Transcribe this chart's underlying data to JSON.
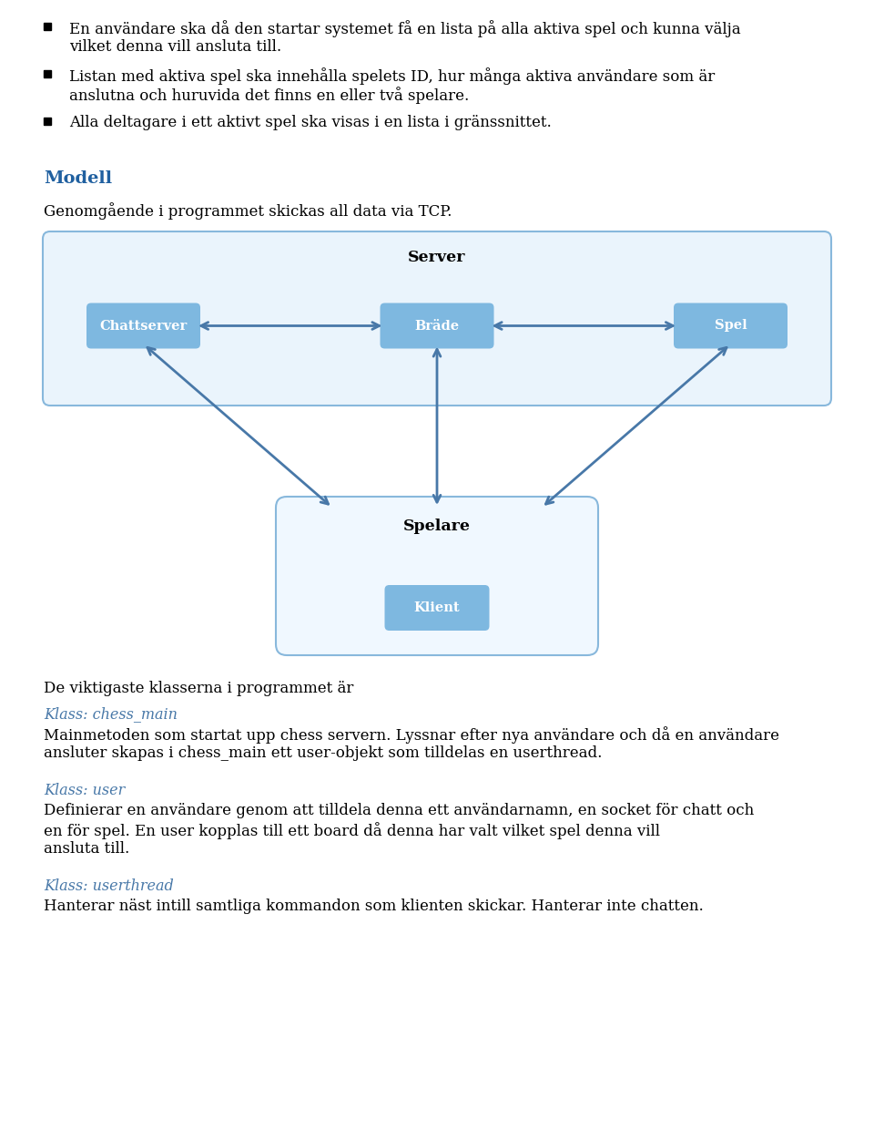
{
  "bullet_points": [
    "En användare ska då den startar systemet få en lista på alla aktiva spel och kunna välja vilket denna vill ansluta till.",
    "Listan med aktiva spel ska innehålla spelets ID, hur många aktiva användare som är anslutna och huruvida det finns en eller två spelare.",
    "Alla deltagare i ett aktivt spel ska visas i en lista i gränssnittet."
  ],
  "heading_modell": "Modell",
  "heading_modell_color": "#2060A0",
  "para_modell": "Genomgående i programmet skickas all data via TCP.",
  "server_label": "Server",
  "server_bg": "#EAF4FC",
  "server_bg_border": "#88B8DC",
  "box_color": "#7EB8E0",
  "box_border": "#5090B8",
  "spelare_label": "Spelare",
  "spelare_bg": "#F0F8FF",
  "spelare_bg_border": "#88B8DC",
  "klient_label": "Klient",
  "arrow_color": "#4878A8",
  "text_below_heading": "De viktigaste klasserna i programmet är",
  "klass_items": [
    {
      "klass_label": "Klass: chess_main",
      "klass_color": "#4878A8",
      "klass_text": "Mainmetoden som startat upp chess servern. Lyssnar efter nya användare och då en användare ansluter skapas i chess_main ett user-objekt som tilldelas en userthread."
    },
    {
      "klass_label": "Klass: user",
      "klass_color": "#4878A8",
      "klass_text": "Definierar en användare genom att tilldela denna ett användarnamn, en socket för chatt och en för spel. En user kopplas till ett board då denna har valt vilket spel denna vill ansluta till."
    },
    {
      "klass_label": "Klass: userthread",
      "klass_color": "#4878A8",
      "klass_text": "Hanterar näst intill samtliga kommandon som klienten skickar. Hanterar inte chatten."
    }
  ],
  "bg_color": "#FFFFFF",
  "text_color": "#000000"
}
